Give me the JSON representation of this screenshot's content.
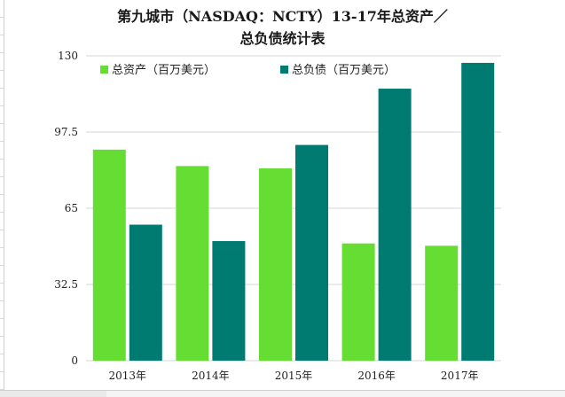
{
  "chart_data": {
    "type": "bar",
    "title_lines": [
      "第九城市（NASDAQ：NCTY）13-17年总资产／",
      "总负债统计表"
    ],
    "categories": [
      "2013年",
      "2014年",
      "2015年",
      "2016年",
      "2017年"
    ],
    "series": [
      {
        "name": "总资产（百万美元）",
        "color": "#66dd33",
        "values": [
          90,
          83,
          82,
          50,
          49
        ]
      },
      {
        "name": "总负债（百万美元）",
        "color": "#007b72",
        "values": [
          58,
          51,
          92,
          116,
          127
        ]
      }
    ],
    "yticks": [
      "0",
      "32.5",
      "65",
      "97.5",
      "130"
    ],
    "ylim": [
      0,
      130
    ],
    "grid": true,
    "legend_position": "top"
  }
}
